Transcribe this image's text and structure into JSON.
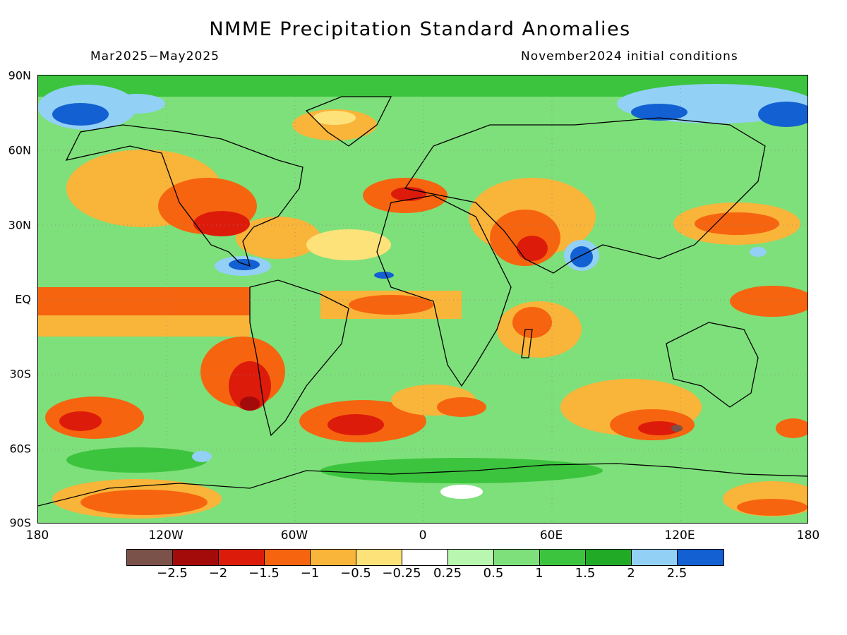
{
  "title": "NMME Precipitation Standard Anomalies",
  "period": "Mar2025−May2025",
  "initial_conditions": "November2024 initial conditions",
  "lat_axis": [
    "90N",
    "60N",
    "30N",
    "EQ",
    "30S",
    "60S",
    "90S"
  ],
  "lon_axis": [
    "180",
    "120W",
    "60W",
    "0",
    "60E",
    "120E",
    "180"
  ],
  "colorbar": {
    "labels": [
      "−2.5",
      "−2",
      "−1.5",
      "−1",
      "−0.5",
      "−0.25",
      "0.25",
      "0.5",
      "1",
      "1.5",
      "2",
      "2.5"
    ],
    "colors": [
      "#7a5249",
      "#a30a0a",
      "#dd1b0b",
      "#f6640f",
      "#f9b43a",
      "#fde27a",
      "#ffffff",
      "#b9f7b1",
      "#7ee07a",
      "#3cc43e",
      "#20aa26",
      "#92d0f6",
      "#1260d2"
    ]
  },
  "map_colors": {
    "ocean_base": "#7ee07a",
    "land_outline": "#000000"
  }
}
